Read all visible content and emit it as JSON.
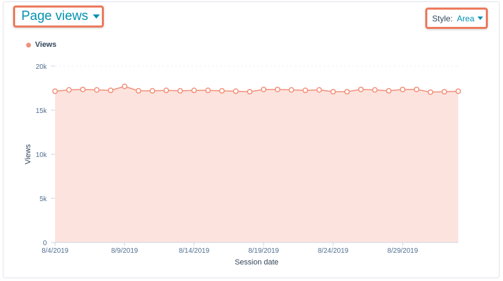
{
  "header": {
    "title": "Page views",
    "style_label": "Style:",
    "style_value": "Area"
  },
  "colors": {
    "series": "#f2907a",
    "fill": "#fde3de",
    "accent": "#0091ae",
    "highlight": "#ec7a5d"
  },
  "icons": {
    "title_caret": "chevron-down-icon",
    "style_caret": "chevron-down-icon"
  },
  "chart_data": {
    "type": "area",
    "xlabel": "Session date",
    "ylabel": "Views",
    "ylim": [
      0,
      20000
    ],
    "grid": true,
    "legend": "top-left",
    "y_ticks": [
      {
        "value": 0,
        "label": "0"
      },
      {
        "value": 5000,
        "label": "5k"
      },
      {
        "value": 10000,
        "label": "10k"
      },
      {
        "value": 15000,
        "label": "15k"
      },
      {
        "value": 20000,
        "label": "20k"
      }
    ],
    "x_tick_labels": [
      "8/4/2019",
      "8/9/2019",
      "8/14/2019",
      "8/19/2019",
      "8/24/2019",
      "8/29/2019"
    ],
    "series": [
      {
        "name": "Views",
        "x": [
          "8/4/2019",
          "8/5/2019",
          "8/6/2019",
          "8/7/2019",
          "8/8/2019",
          "8/9/2019",
          "8/10/2019",
          "8/11/2019",
          "8/12/2019",
          "8/13/2019",
          "8/14/2019",
          "8/15/2019",
          "8/16/2019",
          "8/17/2019",
          "8/18/2019",
          "8/19/2019",
          "8/20/2019",
          "8/21/2019",
          "8/22/2019",
          "8/23/2019",
          "8/24/2019",
          "8/25/2019",
          "8/26/2019",
          "8/27/2019",
          "8/28/2019",
          "8/29/2019",
          "8/30/2019",
          "8/31/2019",
          "9/1/2019",
          "9/2/2019"
        ],
        "values": [
          17150,
          17300,
          17350,
          17300,
          17250,
          17700,
          17200,
          17200,
          17250,
          17200,
          17250,
          17250,
          17200,
          17150,
          17100,
          17350,
          17350,
          17300,
          17250,
          17300,
          17100,
          17100,
          17350,
          17300,
          17200,
          17350,
          17350,
          17050,
          17100,
          17150
        ]
      }
    ]
  }
}
